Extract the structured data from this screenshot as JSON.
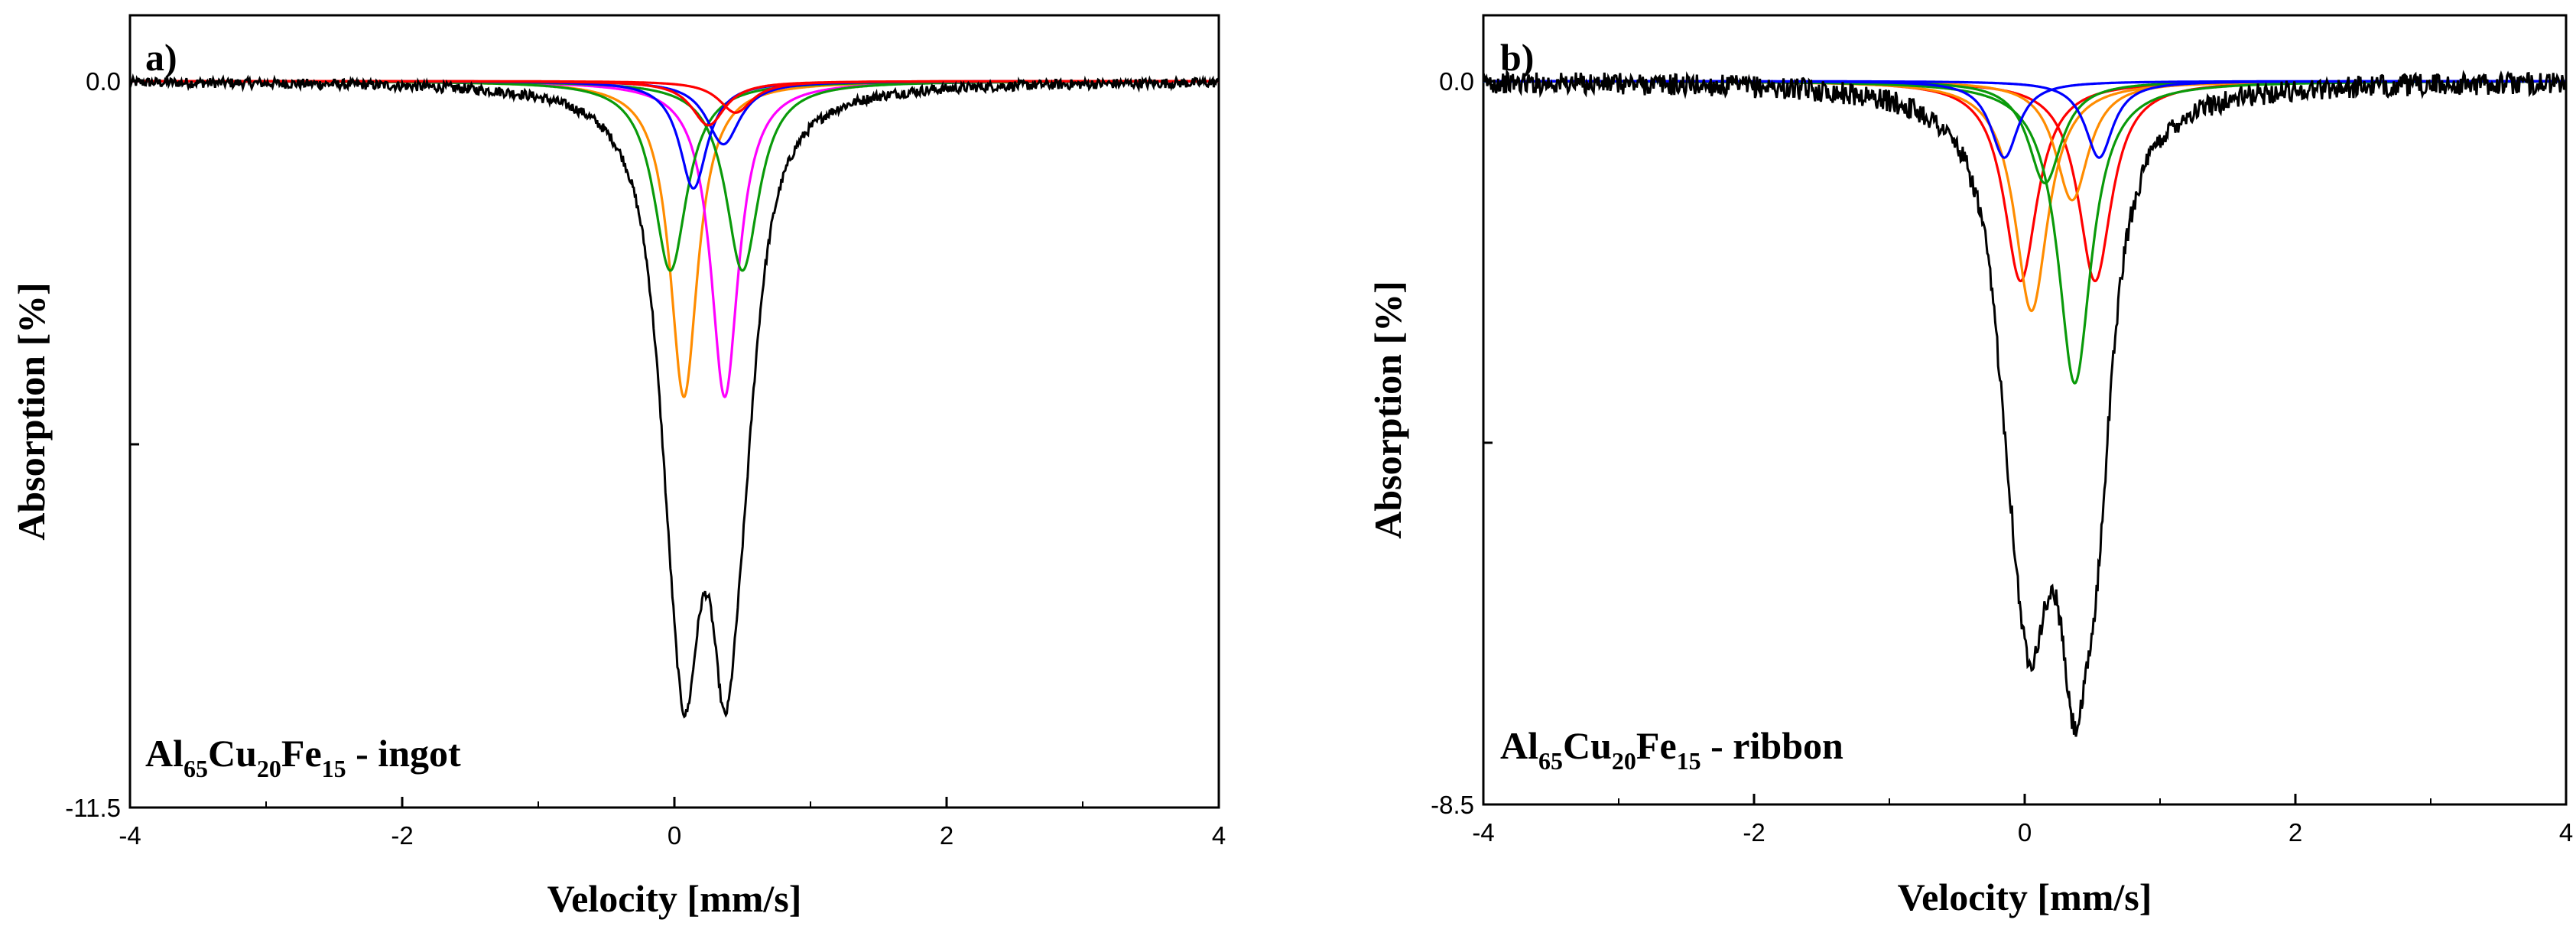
{
  "chart_data": [
    {
      "type": "line",
      "panel_label": "a)",
      "xlabel": "Velocity [mm/s]",
      "ylabel": "Absorption [%]",
      "xlim": [
        -4,
        4
      ],
      "ylim": [
        -11.5,
        0.0
      ],
      "xticks": [
        -4,
        -2,
        0,
        2,
        4
      ],
      "yticks": [
        0.0,
        -11.5
      ],
      "ytick_labels": [
        "0.0",
        "-11.5"
      ],
      "annotation": {
        "el1": "Al",
        "sub1": "65",
        "el2": "Cu",
        "sub2": "20",
        "el3": "Fe",
        "sub3": "15",
        "suffix": " - ingot"
      },
      "noise": 0.08,
      "envelope_color": "#000000",
      "components": [
        {
          "name": "doublet-1-line-1",
          "color": "#ff8c00",
          "position": 0.07,
          "depth": 5.0,
          "width": 0.25
        },
        {
          "name": "doublet-1-line-2",
          "color": "#ff00ff",
          "position": 0.37,
          "depth": 5.0,
          "width": 0.25
        },
        {
          "name": "doublet-2-line-1",
          "color": "#0a9a0a",
          "position": -0.03,
          "depth": 3.0,
          "width": 0.3
        },
        {
          "name": "doublet-2-line-2",
          "color": "#0a9a0a",
          "position": 0.5,
          "depth": 3.0,
          "width": 0.3
        },
        {
          "name": "doublet-3-line-1",
          "color": "#0000ff",
          "position": 0.14,
          "depth": 1.7,
          "width": 0.25
        },
        {
          "name": "doublet-3-line-2",
          "color": "#0000ff",
          "position": 0.36,
          "depth": 1.0,
          "width": 0.3
        },
        {
          "name": "doublet-4-line-1",
          "color": "#ff0000",
          "position": 0.25,
          "depth": 0.7,
          "width": 0.3
        },
        {
          "name": "doublet-4-line-2",
          "color": "#ff0000",
          "position": 0.45,
          "depth": 0.5,
          "width": 0.3
        }
      ]
    },
    {
      "type": "line",
      "panel_label": "b)",
      "xlabel": "Velocity [mm/s]",
      "ylabel": "Absorption [%]",
      "xlim": [
        -4,
        4
      ],
      "ylim": [
        -8.5,
        0.0
      ],
      "xticks": [
        -4,
        -2,
        0,
        2,
        4
      ],
      "yticks": [
        0.0,
        -8.5
      ],
      "ytick_labels": [
        "0.0",
        "-8.5"
      ],
      "annotation": {
        "el1": "Al",
        "sub1": "65",
        "el2": "Cu",
        "sub2": "20",
        "el3": "Fe",
        "sub3": "15",
        "suffix": " - ribbon"
      },
      "noise": 0.13,
      "envelope_color": "#000000",
      "components": [
        {
          "name": "doublet-1-line-1",
          "color": "#ff0000",
          "position": -0.03,
          "depth": 2.35,
          "width": 0.3
        },
        {
          "name": "doublet-1-line-2",
          "color": "#ff0000",
          "position": 0.52,
          "depth": 2.35,
          "width": 0.3
        },
        {
          "name": "doublet-2-line-1",
          "color": "#ff8c00",
          "position": 0.05,
          "depth": 2.7,
          "width": 0.3
        },
        {
          "name": "doublet-2-line-2",
          "color": "#ff8c00",
          "position": 0.35,
          "depth": 1.4,
          "width": 0.3
        },
        {
          "name": "doublet-3-line-1",
          "color": "#0a9a0a",
          "position": 0.15,
          "depth": 1.2,
          "width": 0.3
        },
        {
          "name": "doublet-3-line-2",
          "color": "#0a9a0a",
          "position": 0.37,
          "depth": 3.55,
          "width": 0.3
        },
        {
          "name": "doublet-4-line-1",
          "color": "#0000ff",
          "position": -0.15,
          "depth": 0.9,
          "width": 0.25
        },
        {
          "name": "doublet-4-line-2",
          "color": "#0000ff",
          "position": 0.55,
          "depth": 0.9,
          "width": 0.25
        }
      ]
    }
  ]
}
